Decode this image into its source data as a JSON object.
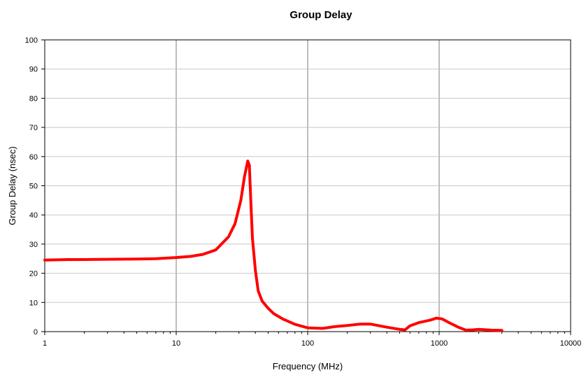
{
  "chart_data": {
    "type": "line",
    "title": "Group Delay",
    "xlabel": "Frequency (MHz)",
    "ylabel": "Group Delay (nsec)",
    "xscale": "log",
    "xlim": [
      1,
      10000
    ],
    "ylim": [
      0,
      100
    ],
    "x_ticks": [
      1,
      10,
      100,
      1000,
      10000
    ],
    "x_tick_labels": [
      "1",
      "10",
      "100",
      "1000",
      "10000"
    ],
    "y_ticks": [
      0,
      10,
      20,
      30,
      40,
      50,
      60,
      70,
      80,
      90,
      100
    ],
    "y_tick_labels": [
      "0",
      "10",
      "20",
      "30",
      "40",
      "50",
      "60",
      "70",
      "80",
      "90",
      "100"
    ],
    "grid": {
      "horizontal": true,
      "vertical_major": true
    },
    "legend": "none",
    "series": [
      {
        "color": "#ff0000",
        "x": [
          1,
          1.5,
          2,
          3,
          5,
          7,
          10,
          13,
          16,
          20,
          25,
          28,
          31,
          33,
          35,
          36,
          37,
          38,
          40,
          42,
          45,
          50,
          55,
          65,
          80,
          100,
          130,
          160,
          200,
          250,
          300,
          400,
          500,
          550,
          600,
          700,
          850,
          950,
          1050,
          1200,
          1400,
          1600,
          1800,
          2000,
          2500,
          3000
        ],
        "y": [
          24.5,
          24.7,
          24.7,
          24.8,
          24.9,
          25.0,
          25.4,
          25.8,
          26.5,
          28.0,
          32.5,
          37.0,
          45.0,
          53.0,
          58.5,
          57.0,
          44.0,
          32.0,
          21.0,
          14.0,
          10.5,
          8.0,
          6.2,
          4.3,
          2.5,
          1.3,
          1.1,
          1.7,
          2.1,
          2.6,
          2.6,
          1.5,
          0.8,
          0.6,
          2.0,
          3.1,
          3.9,
          4.6,
          4.4,
          3.0,
          1.5,
          0.5,
          0.6,
          0.8,
          0.5,
          0.4
        ]
      }
    ]
  },
  "style": {
    "line_color": "#ff0000",
    "grid_color": "#c8c8c8",
    "vgrid_color": "#bdbdbd",
    "axis_color": "#000000"
  }
}
